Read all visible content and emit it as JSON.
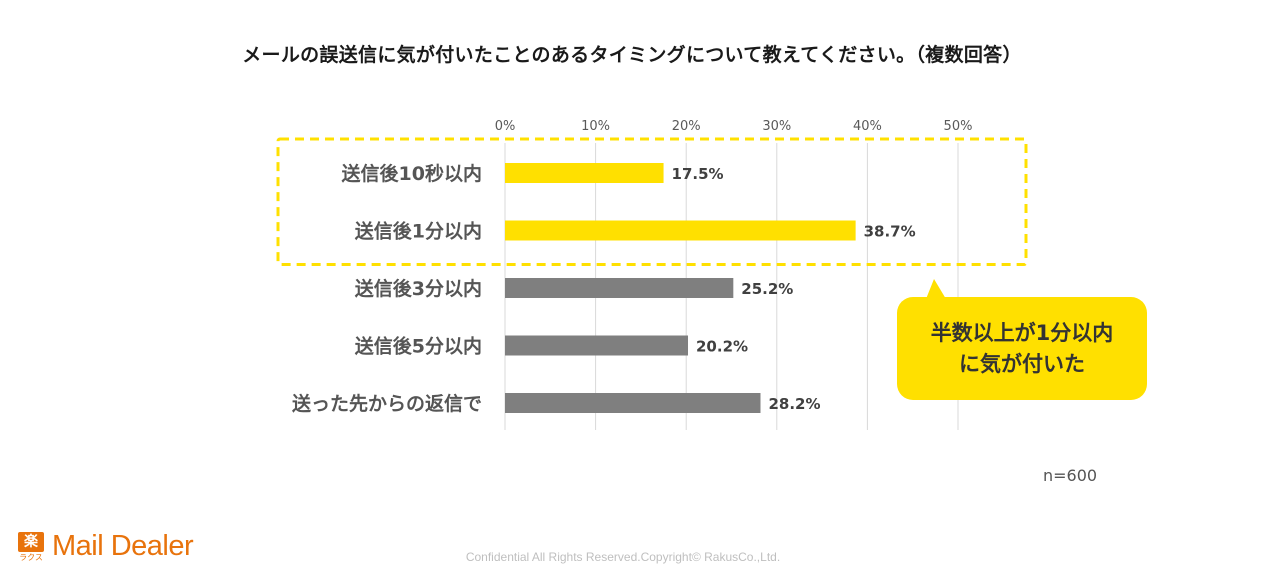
{
  "chart_data": {
    "type": "bar",
    "orientation": "horizontal",
    "title": "メールの誤送信に気が付いたことのあるタイミングについて教えてください。（複数回答）",
    "categories": [
      "送信後10秒以内",
      "送信後1分以内",
      "送信後3分以内",
      "送信後5分以内",
      "送った先からの返信で"
    ],
    "values": [
      17.5,
      38.7,
      25.2,
      20.2,
      28.2
    ],
    "value_labels": [
      "17.5%",
      "38.7%",
      "25.2%",
      "20.2%",
      "28.2%"
    ],
    "highlighted": [
      true,
      true,
      false,
      false,
      false
    ],
    "xlim": [
      0,
      50
    ],
    "ticks": [
      0,
      10,
      20,
      30,
      40,
      50
    ],
    "tick_labels": [
      "0%",
      "10%",
      "20%",
      "30%",
      "40%",
      "50%"
    ],
    "xlabel": "",
    "ylabel": "",
    "grid": true,
    "colors": {
      "highlight": "#ffe000",
      "normal": "#7f7f7f",
      "grid": "#d9d9d9",
      "frame": "#ffe000"
    }
  },
  "callout": {
    "line1": "半数以上が1分以内",
    "line2": "に気が付いた"
  },
  "sample_size": "n=600",
  "footer": {
    "logo_kanji": "楽",
    "logo_kana": "ラクス",
    "logo_text": "Mail Dealer",
    "copyright": "Confidential All Rights Reserved.Copyright© RakusCo.,Ltd."
  }
}
